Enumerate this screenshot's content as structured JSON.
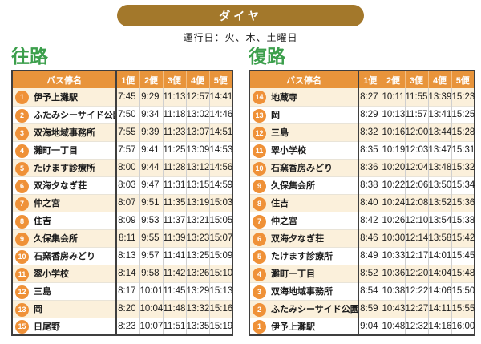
{
  "page": {
    "title": "ダイヤ",
    "operating_days": "運行日：火、木、土曜日"
  },
  "colors": {
    "pill_brown": "#A3782B",
    "table_header_orange": "#E8943B",
    "badge_orange": "#EF9138",
    "row_cream": "#FBF0DB",
    "section_green": "#3C9F4C",
    "border_dark": "#3F3F3F"
  },
  "outbound": {
    "title": "往路",
    "columns": {
      "stop": "バス停名",
      "trips": [
        "1便",
        "2便",
        "3便",
        "4便",
        "5便"
      ]
    },
    "rows": [
      {
        "no": "1",
        "stop": "伊予上灘駅",
        "times": [
          "7:45",
          "9:29",
          "11:13",
          "12:57",
          "14:41"
        ]
      },
      {
        "no": "2",
        "stop": "ふたみシーサイド公園",
        "times": [
          "7:50",
          "9:34",
          "11:18",
          "13:02",
          "14:46"
        ]
      },
      {
        "no": "3",
        "stop": "双海地域事務所",
        "times": [
          "7:55",
          "9:39",
          "11:23",
          "13:07",
          "14:51"
        ]
      },
      {
        "no": "4",
        "stop": "灘町一丁目",
        "times": [
          "7:57",
          "9:41",
          "11:25",
          "13:09",
          "14:53"
        ]
      },
      {
        "no": "5",
        "stop": "たけます診療所",
        "times": [
          "8:00",
          "9:44",
          "11:28",
          "13:12",
          "14:56"
        ]
      },
      {
        "no": "6",
        "stop": "双海夕なぎ荘",
        "times": [
          "8:03",
          "9:47",
          "11:31",
          "13:15",
          "14:59"
        ]
      },
      {
        "no": "7",
        "stop": "仲之宮",
        "times": [
          "8:07",
          "9:51",
          "11:35",
          "13:19",
          "15:03"
        ]
      },
      {
        "no": "8",
        "stop": "住吉",
        "times": [
          "8:09",
          "9:53",
          "11:37",
          "13:21",
          "15:05"
        ]
      },
      {
        "no": "9",
        "stop": "久保集会所",
        "times": [
          "8:11",
          "9:55",
          "11:39",
          "13:23",
          "15:07"
        ]
      },
      {
        "no": "10",
        "stop": "石窯香房みどり",
        "times": [
          "8:13",
          "9:57",
          "11:41",
          "13:25",
          "15:09"
        ]
      },
      {
        "no": "11",
        "stop": "翠小学校",
        "times": [
          "8:14",
          "9:58",
          "11:42",
          "13:26",
          "15:10"
        ]
      },
      {
        "no": "12",
        "stop": "三島",
        "times": [
          "8:17",
          "10:01",
          "11:45",
          "13:29",
          "15:13"
        ]
      },
      {
        "no": "13",
        "stop": "岡",
        "times": [
          "8:20",
          "10:04",
          "11:48",
          "13:32",
          "15:16"
        ]
      },
      {
        "no": "15",
        "stop": "日尾野",
        "times": [
          "8:23",
          "10:07",
          "11:51",
          "13:35",
          "15:19"
        ]
      }
    ]
  },
  "inbound": {
    "title": "復路",
    "columns": {
      "stop": "バス停名",
      "trips": [
        "1便",
        "2便",
        "3便",
        "4便",
        "5便"
      ]
    },
    "rows": [
      {
        "no": "14",
        "stop": "地蔵寺",
        "times": [
          "8:27",
          "10:11",
          "11:55",
          "13:39",
          "15:23"
        ]
      },
      {
        "no": "13",
        "stop": "岡",
        "times": [
          "8:29",
          "10:13",
          "11:57",
          "13:41",
          "15:25"
        ]
      },
      {
        "no": "12",
        "stop": "三島",
        "times": [
          "8:32",
          "10:16",
          "12:00",
          "13:44",
          "15:28"
        ]
      },
      {
        "no": "11",
        "stop": "翠小学校",
        "times": [
          "8:35",
          "10:19",
          "12:03",
          "13:47",
          "15:31"
        ]
      },
      {
        "no": "10",
        "stop": "石窯香房みどり",
        "times": [
          "8:36",
          "10:20",
          "12:04",
          "13:48",
          "15:32"
        ]
      },
      {
        "no": "9",
        "stop": "久保集会所",
        "times": [
          "8:38",
          "10:22",
          "12:06",
          "13:50",
          "15:34"
        ]
      },
      {
        "no": "8",
        "stop": "住吉",
        "times": [
          "8:40",
          "10:24",
          "12:08",
          "13:52",
          "15:36"
        ]
      },
      {
        "no": "7",
        "stop": "仲之宮",
        "times": [
          "8:42",
          "10:26",
          "12:10",
          "13:54",
          "15:38"
        ]
      },
      {
        "no": "6",
        "stop": "双海夕なぎ荘",
        "times": [
          "8:46",
          "10:30",
          "12:14",
          "13:58",
          "15:42"
        ]
      },
      {
        "no": "5",
        "stop": "たけます診療所",
        "times": [
          "8:49",
          "10:33",
          "12:17",
          "14:01",
          "15:45"
        ]
      },
      {
        "no": "4",
        "stop": "灘町一丁目",
        "times": [
          "8:52",
          "10:36",
          "12:20",
          "14:04",
          "15:48"
        ]
      },
      {
        "no": "3",
        "stop": "双海地域事務所",
        "times": [
          "8:54",
          "10:38",
          "12:22",
          "14:06",
          "15:50"
        ]
      },
      {
        "no": "2",
        "stop": "ふたみシーサイド公園",
        "times": [
          "8:59",
          "10:43",
          "12:27",
          "14:11",
          "15:55"
        ]
      },
      {
        "no": "1",
        "stop": "伊予上灘駅",
        "times": [
          "9:04",
          "10:48",
          "12:32",
          "14:16",
          "16:00"
        ]
      }
    ]
  }
}
